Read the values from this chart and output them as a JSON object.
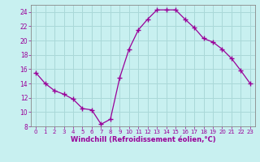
{
  "x": [
    0,
    1,
    2,
    3,
    4,
    5,
    6,
    7,
    8,
    9,
    10,
    11,
    12,
    13,
    14,
    15,
    16,
    17,
    18,
    19,
    20,
    21,
    22,
    23
  ],
  "y": [
    15.5,
    14.0,
    13.0,
    12.5,
    11.8,
    10.5,
    10.3,
    8.3,
    9.0,
    14.8,
    18.8,
    21.5,
    23.0,
    24.3,
    24.3,
    24.3,
    23.0,
    21.8,
    20.3,
    19.8,
    18.8,
    17.5,
    15.8,
    14.0
  ],
  "line_color": "#990099",
  "marker": "+",
  "marker_size": 4,
  "bg_color": "#c8f0f0",
  "grid_color": "#aad8d8",
  "xlabel": "Windchill (Refroidissement éolien,°C)",
  "xlabel_color": "#990099",
  "tick_color": "#990099",
  "axis_color": "#888888",
  "ylim": [
    8,
    25
  ],
  "xlim": [
    -0.5,
    23.5
  ],
  "yticks": [
    8,
    10,
    12,
    14,
    16,
    18,
    20,
    22,
    24
  ],
  "xticks": [
    0,
    1,
    2,
    3,
    4,
    5,
    6,
    7,
    8,
    9,
    10,
    11,
    12,
    13,
    14,
    15,
    16,
    17,
    18,
    19,
    20,
    21,
    22,
    23
  ]
}
